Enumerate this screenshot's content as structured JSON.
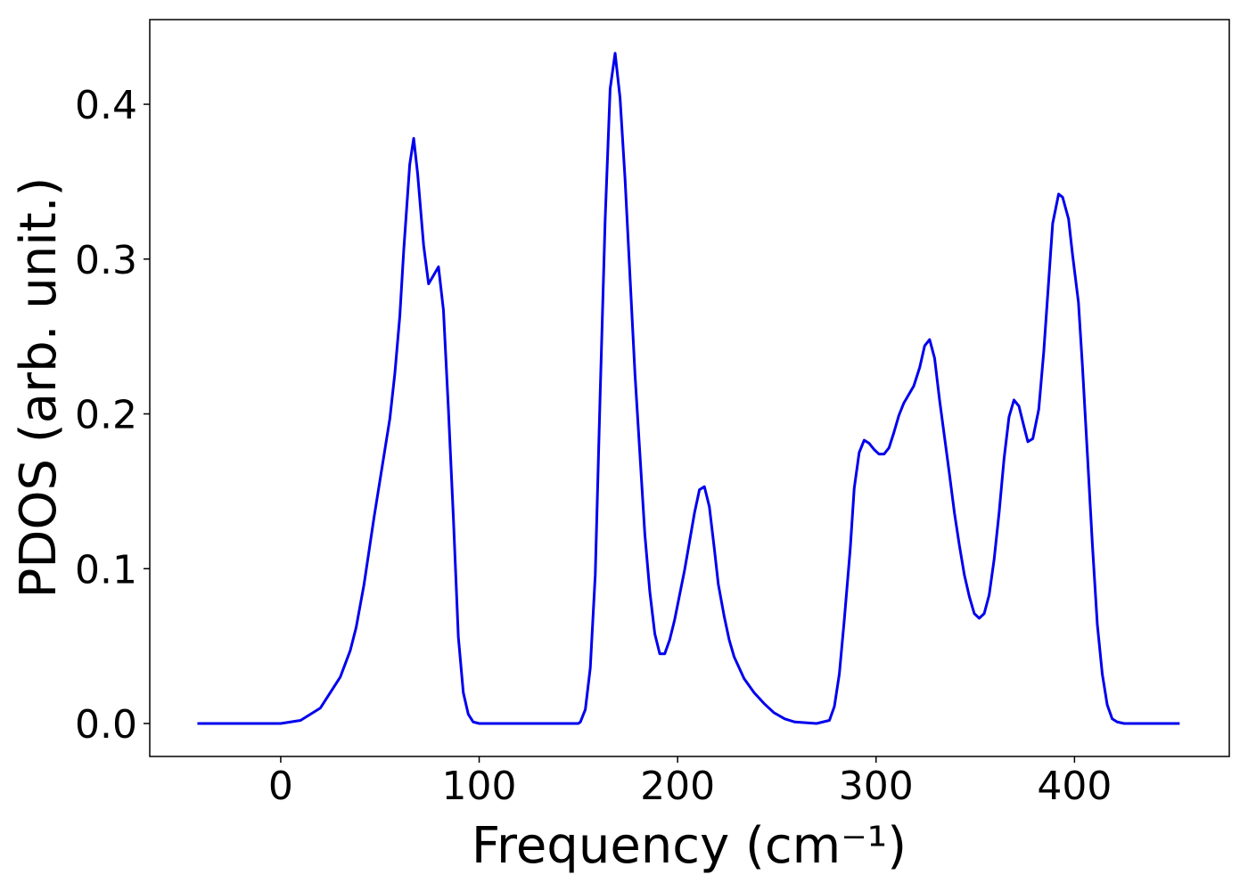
{
  "chart_data": {
    "type": "line",
    "xlabel": "Frequency (cm⁻¹)",
    "ylabel": "PDOS (arb. unit.)",
    "xlim": [
      -66,
      478
    ],
    "ylim": [
      -0.0213,
      0.4547
    ],
    "xticks": [
      0,
      100,
      200,
      300,
      400
    ],
    "yticks": [
      {
        "value": 0,
        "label": "0.0"
      },
      0.1,
      0.2,
      0.3,
      0.4
    ],
    "grid": false,
    "x": [
      -42,
      0,
      10,
      20,
      30,
      35,
      38,
      42,
      47,
      55,
      57.5,
      60,
      62,
      65,
      67,
      69,
      72,
      74.5,
      79.5,
      82,
      84.5,
      87,
      89.5,
      92,
      94.5,
      97,
      100,
      150,
      151,
      153.5,
      156,
      158.5,
      161,
      163.5,
      166,
      168.5,
      171,
      173.5,
      176,
      178.5,
      181,
      183.5,
      186,
      188.5,
      191,
      193.5,
      196,
      198.5,
      203.5,
      208.5,
      211,
      213.5,
      216,
      218.5,
      220.5,
      223.5,
      226,
      228.5,
      233.5,
      238.5,
      243.5,
      248.5,
      254,
      259,
      270,
      276.5,
      279,
      281.5,
      284,
      287,
      289,
      291.5,
      294,
      296.5,
      299,
      301.5,
      304,
      306.5,
      309,
      311.5,
      314,
      319,
      322,
      324.5,
      327,
      329.5,
      332,
      334.5,
      337,
      339.5,
      342,
      344.5,
      347,
      349.5,
      352,
      354.5,
      357,
      359.5,
      362,
      364.5,
      367,
      369.5,
      372,
      374.5,
      376.5,
      379,
      382,
      384.5,
      387,
      389,
      392,
      394,
      397,
      399,
      402,
      404,
      406.5,
      409,
      411.5,
      414,
      416.5,
      419,
      421.5,
      425,
      453
    ],
    "series": [
      {
        "name": "PDOS",
        "color": "#0000ee",
        "values": [
          0,
          0,
          0.002,
          0.01,
          0.03,
          0.047,
          0.062,
          0.09,
          0.133,
          0.197,
          0.226,
          0.263,
          0.306,
          0.361,
          0.378,
          0.355,
          0.309,
          0.284,
          0.295,
          0.267,
          0.203,
          0.133,
          0.056,
          0.02,
          0.006,
          0.001,
          0,
          0,
          0.001,
          0.009,
          0.036,
          0.096,
          0.214,
          0.326,
          0.41,
          0.433,
          0.404,
          0.352,
          0.289,
          0.226,
          0.174,
          0.122,
          0.085,
          0.058,
          0.045,
          0.045,
          0.054,
          0.067,
          0.099,
          0.136,
          0.151,
          0.153,
          0.14,
          0.113,
          0.09,
          0.069,
          0.054,
          0.043,
          0.029,
          0.02,
          0.013,
          0.007,
          0.003,
          0.001,
          0,
          0.002,
          0.011,
          0.032,
          0.067,
          0.113,
          0.152,
          0.175,
          0.183,
          0.181,
          0.177,
          0.174,
          0.174,
          0.178,
          0.188,
          0.199,
          0.207,
          0.218,
          0.23,
          0.244,
          0.248,
          0.236,
          0.209,
          0.185,
          0.161,
          0.136,
          0.115,
          0.096,
          0.082,
          0.071,
          0.068,
          0.071,
          0.083,
          0.106,
          0.136,
          0.171,
          0.198,
          0.209,
          0.205,
          0.192,
          0.182,
          0.184,
          0.203,
          0.24,
          0.286,
          0.323,
          0.342,
          0.34,
          0.326,
          0.303,
          0.272,
          0.231,
          0.174,
          0.116,
          0.064,
          0.032,
          0.012,
          0.003,
          0.001,
          0,
          0
        ]
      }
    ]
  }
}
